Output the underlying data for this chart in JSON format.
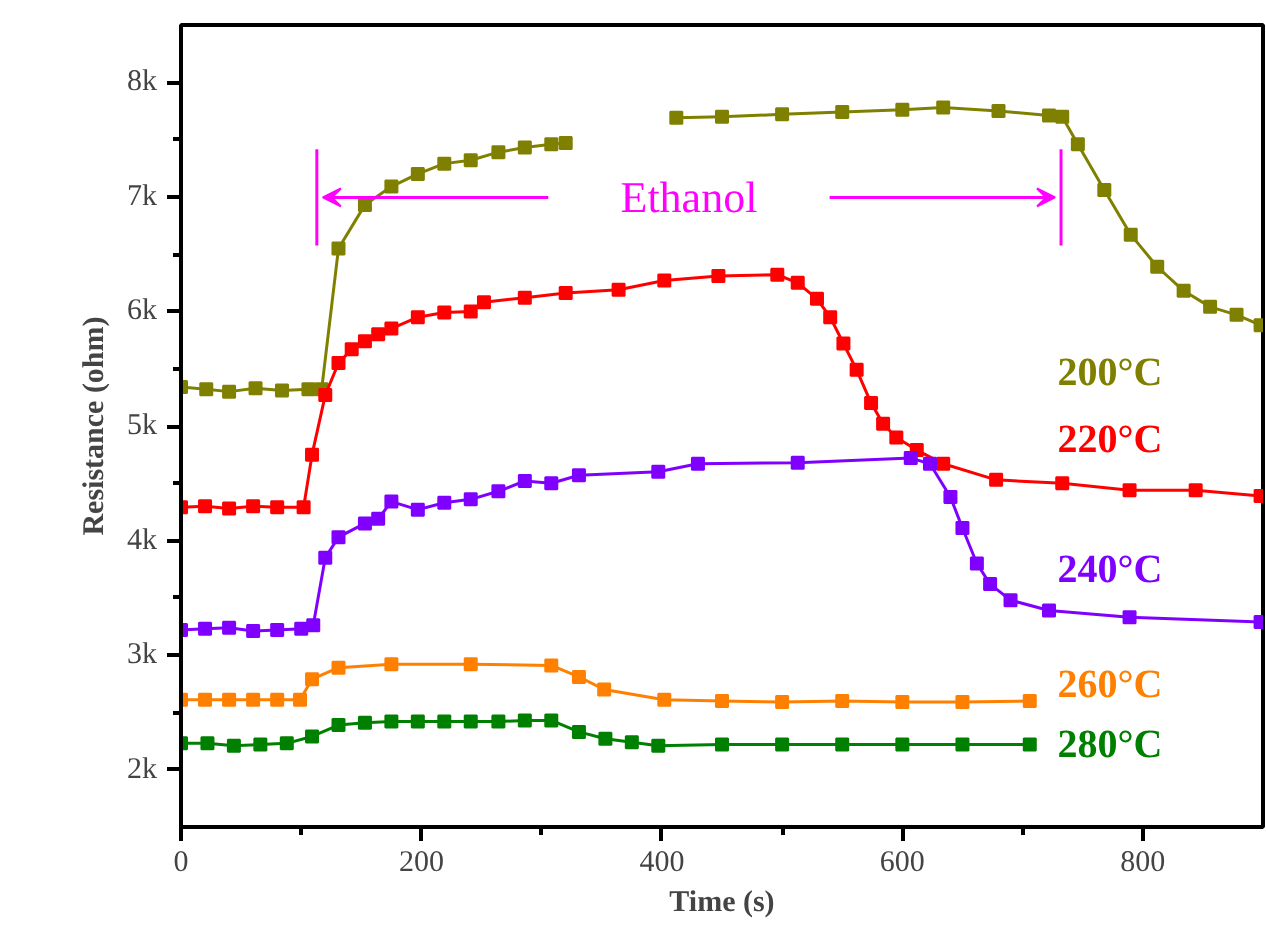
{
  "chart_data": {
    "type": "line",
    "xlabel": "Time (s)",
    "ylabel": "Resistance (ohm)",
    "xlim": [
      0,
      900
    ],
    "ylim": [
      1500,
      8500
    ],
    "xticks": [
      0,
      {
        "value": 100,
        "label": null
      },
      200,
      {
        "value": 300,
        "label": null
      },
      400,
      {
        "value": 500,
        "label": null
      },
      600,
      {
        "value": 700,
        "label": null
      },
      800
    ],
    "yticks": [
      {
        "value": 2000,
        "label": "2k"
      },
      {
        "value": 2500,
        "label": null
      },
      {
        "value": 3000,
        "label": "3k"
      },
      {
        "value": 3500,
        "label": null
      },
      {
        "value": 4000,
        "label": "4k"
      },
      {
        "value": 4500,
        "label": null
      },
      {
        "value": 5000,
        "label": "5k"
      },
      {
        "value": 5500,
        "label": null
      },
      {
        "value": 6000,
        "label": "6k"
      },
      {
        "value": 6500,
        "label": null
      },
      {
        "value": 7000,
        "label": "7k"
      },
      {
        "value": 7500,
        "label": null
      },
      {
        "value": 8000,
        "label": "8k"
      }
    ],
    "grid": false,
    "marker": "square",
    "line_style": "solid",
    "ref_lines": [
      {
        "axis": "x",
        "value": 113,
        "color": "#ff00ff"
      },
      {
        "axis": "x",
        "value": 732,
        "color": "#ff00ff"
      }
    ],
    "annotations": [
      "Ethanol"
    ],
    "series": [
      {
        "name": "200°C",
        "color": "#808000",
        "x": [
          0,
          21,
          40,
          62,
          84,
          106,
          117,
          131,
          153,
          175,
          197,
          219,
          241,
          264,
          286,
          308,
          320,
          366,
          412,
          450,
          500,
          550,
          600,
          634,
          680,
          722,
          733,
          746,
          768,
          790,
          812,
          834,
          856,
          878,
          898
        ],
        "values": [
          5340,
          5320,
          5300,
          5330,
          5310,
          5320,
          5320,
          6550,
          6930,
          7090,
          7200,
          7290,
          7320,
          7390,
          7430,
          7460,
          7470,
          null,
          7690,
          7700,
          7720,
          7740,
          7760,
          7780,
          7750,
          7710,
          7700,
          7460,
          7060,
          6670,
          6390,
          6180,
          6040,
          5970,
          5880
        ]
      },
      {
        "name": "220°C",
        "color": "#ff0000",
        "x": [
          0,
          20,
          40,
          60,
          80,
          102,
          109,
          120,
          131,
          142,
          153,
          164,
          175,
          197,
          219,
          241,
          252,
          286,
          320,
          364,
          402,
          447,
          496,
          513,
          529,
          540,
          551,
          562,
          574,
          584,
          595,
          612,
          634,
          678,
          733,
          789,
          844,
          898
        ],
        "values": [
          4290,
          4300,
          4280,
          4300,
          4290,
          4290,
          4750,
          5270,
          5550,
          5670,
          5740,
          5800,
          5850,
          5950,
          5990,
          6000,
          6080,
          6120,
          6160,
          6190,
          6270,
          6310,
          6320,
          6250,
          6110,
          5950,
          5720,
          5490,
          5200,
          5020,
          4900,
          4790,
          4670,
          4530,
          4500,
          4440,
          4440,
          4390
        ]
      },
      {
        "name": "240°C",
        "color": "#8000ff",
        "x": [
          0,
          20,
          40,
          60,
          80,
          100,
          110,
          120,
          131,
          153,
          164,
          175,
          197,
          219,
          241,
          264,
          286,
          308,
          331,
          397,
          430,
          513,
          607,
          623,
          640,
          650,
          662,
          673,
          690,
          722,
          789,
          898
        ],
        "values": [
          3220,
          3230,
          3240,
          3210,
          3220,
          3230,
          3260,
          3850,
          4030,
          4150,
          4190,
          4340,
          4270,
          4330,
          4360,
          4430,
          4520,
          4500,
          4570,
          4600,
          4670,
          4680,
          4720,
          4670,
          4380,
          4110,
          3800,
          3620,
          3480,
          3390,
          3330,
          3290
        ]
      },
      {
        "name": "260°C",
        "color": "#ff8000",
        "x": [
          0,
          20,
          40,
          60,
          80,
          99,
          109,
          131,
          175,
          241,
          308,
          331,
          352,
          402,
          450,
          500,
          550,
          600,
          650,
          706
        ],
        "values": [
          2610,
          2610,
          2610,
          2610,
          2610,
          2610,
          2790,
          2890,
          2920,
          2920,
          2910,
          2810,
          2700,
          2610,
          2600,
          2590,
          2600,
          2590,
          2590,
          2600
        ]
      },
      {
        "name": "280°C",
        "color": "#008000",
        "x": [
          0,
          22,
          44,
          66,
          88,
          109,
          131,
          153,
          175,
          197,
          219,
          241,
          264,
          286,
          308,
          331,
          353,
          375,
          397,
          450,
          500,
          550,
          600,
          650,
          706
        ],
        "values": [
          2230,
          2230,
          2210,
          2220,
          2230,
          2290,
          2390,
          2410,
          2420,
          2420,
          2420,
          2420,
          2420,
          2430,
          2430,
          2330,
          2270,
          2240,
          2210,
          2220,
          2220,
          2220,
          2220,
          2220,
          2220
        ]
      }
    ]
  }
}
